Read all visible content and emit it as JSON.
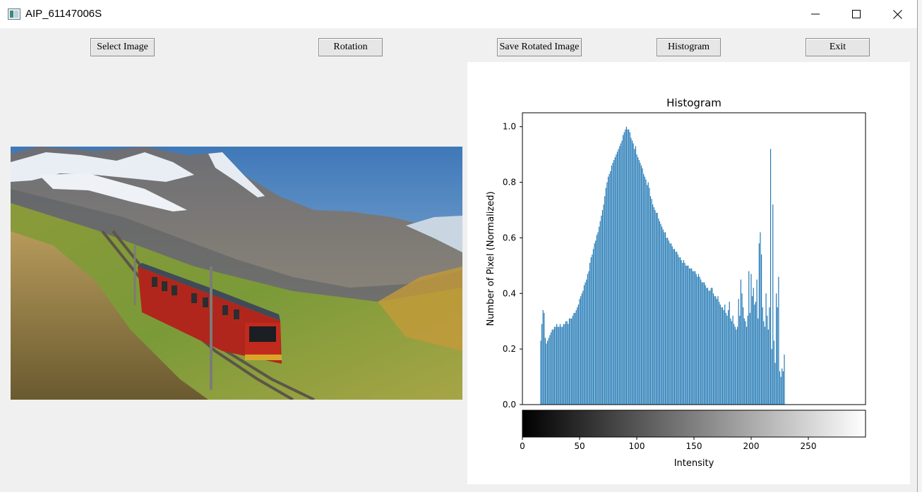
{
  "window": {
    "title": "AIP_61147006S"
  },
  "toolbar": {
    "select_label": "Select Image",
    "rotation_label": "Rotation",
    "save_label": "Save Rotated Image",
    "histogram_label": "Histogram",
    "exit_label": "Exit"
  },
  "icons": {
    "app": "window-app-icon",
    "minimize": "minimize-icon",
    "maximize": "maximize-icon",
    "close": "close-icon"
  },
  "colors": {
    "bar": "#1f77b4",
    "window_bg": "#f0f0f0",
    "panel_bg": "#ffffff"
  },
  "chart_data": {
    "type": "bar",
    "title": "Histogram",
    "xlabel": "Intensity",
    "ylabel": "Number of Pixel (Normalized)",
    "xlim": [
      0,
      300
    ],
    "ylim": [
      0,
      1.05
    ],
    "xticks": [
      0,
      50,
      100,
      150,
      200,
      250
    ],
    "yticks": [
      "0.0",
      "0.2",
      "0.4",
      "0.6",
      "0.8",
      "1.0"
    ],
    "colorbar": "gray",
    "x_start": 16,
    "x_step": 1,
    "values": [
      0.23,
      0.29,
      0.34,
      0.33,
      0.24,
      0.22,
      0.23,
      0.24,
      0.25,
      0.26,
      0.27,
      0.27,
      0.28,
      0.28,
      0.29,
      0.28,
      0.28,
      0.29,
      0.28,
      0.28,
      0.29,
      0.29,
      0.3,
      0.3,
      0.29,
      0.31,
      0.31,
      0.31,
      0.32,
      0.33,
      0.33,
      0.34,
      0.35,
      0.36,
      0.38,
      0.39,
      0.4,
      0.41,
      0.43,
      0.44,
      0.45,
      0.47,
      0.48,
      0.51,
      0.53,
      0.54,
      0.56,
      0.58,
      0.59,
      0.61,
      0.62,
      0.64,
      0.66,
      0.68,
      0.7,
      0.72,
      0.75,
      0.78,
      0.8,
      0.82,
      0.83,
      0.84,
      0.86,
      0.87,
      0.88,
      0.89,
      0.9,
      0.91,
      0.92,
      0.93,
      0.94,
      0.95,
      0.97,
      0.98,
      0.99,
      1.0,
      0.99,
      0.99,
      0.98,
      0.96,
      0.95,
      0.94,
      0.92,
      0.93,
      0.9,
      0.89,
      0.88,
      0.87,
      0.86,
      0.85,
      0.83,
      0.82,
      0.81,
      0.79,
      0.8,
      0.78,
      0.75,
      0.74,
      0.72,
      0.71,
      0.7,
      0.69,
      0.69,
      0.67,
      0.66,
      0.65,
      0.64,
      0.63,
      0.62,
      0.62,
      0.6,
      0.6,
      0.59,
      0.58,
      0.58,
      0.57,
      0.56,
      0.56,
      0.55,
      0.55,
      0.54,
      0.53,
      0.53,
      0.52,
      0.51,
      0.52,
      0.51,
      0.5,
      0.5,
      0.5,
      0.49,
      0.49,
      0.49,
      0.48,
      0.48,
      0.48,
      0.47,
      0.46,
      0.47,
      0.46,
      0.45,
      0.44,
      0.44,
      0.44,
      0.43,
      0.42,
      0.42,
      0.41,
      0.41,
      0.42,
      0.42,
      0.4,
      0.39,
      0.39,
      0.38,
      0.39,
      0.37,
      0.36,
      0.35,
      0.35,
      0.34,
      0.36,
      0.33,
      0.32,
      0.34,
      0.37,
      0.31,
      0.3,
      0.32,
      0.29,
      0.28,
      0.27,
      0.28,
      0.38,
      0.32,
      0.45,
      0.4,
      0.35,
      0.31,
      0.3,
      0.28,
      0.32,
      0.48,
      0.33,
      0.47,
      0.39,
      0.42,
      0.36,
      0.37,
      0.45,
      0.31,
      0.58,
      0.62,
      0.54,
      0.35,
      0.3,
      0.28,
      0.4,
      0.32,
      0.27,
      0.35,
      0.92,
      0.2,
      0.72,
      0.23,
      0.15,
      0.4,
      0.35,
      0.46,
      0.12,
      0.1,
      0.13,
      0.12,
      0.18
    ],
    "colorbar_ticks": [
      0,
      50,
      100,
      150,
      200,
      250
    ]
  }
}
